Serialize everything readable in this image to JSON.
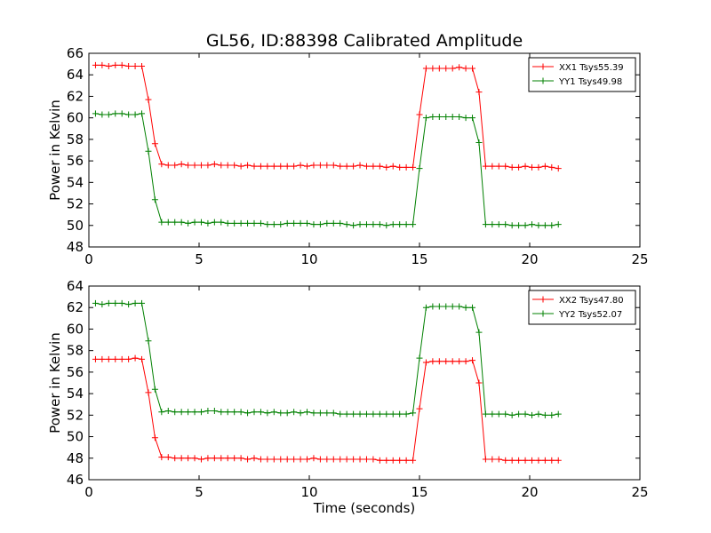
{
  "title": "GL56, ID:88398 Calibrated Amplitude",
  "chart_data": [
    {
      "type": "line",
      "xlabel": "",
      "ylabel": "Power in Kelvin",
      "xlim": [
        0,
        25
      ],
      "ylim": [
        48,
        66
      ],
      "xticks": [
        0,
        5,
        10,
        15,
        20,
        25
      ],
      "yticks": [
        48,
        50,
        52,
        54,
        56,
        58,
        60,
        62,
        64,
        66
      ],
      "legend_position": "top-right",
      "grid": false,
      "x": [
        0.3,
        0.6,
        0.9,
        1.2,
        1.5,
        1.8,
        2.1,
        2.4,
        2.7,
        3.0,
        3.3,
        3.6,
        3.9,
        4.2,
        4.5,
        4.8,
        5.1,
        5.4,
        5.7,
        6.0,
        6.3,
        6.6,
        6.9,
        7.2,
        7.5,
        7.8,
        8.1,
        8.4,
        8.7,
        9.0,
        9.3,
        9.6,
        9.9,
        10.2,
        10.5,
        10.8,
        11.1,
        11.4,
        11.7,
        12.0,
        12.3,
        12.6,
        12.9,
        13.2,
        13.5,
        13.8,
        14.1,
        14.4,
        14.7,
        15.0,
        15.3,
        15.6,
        15.9,
        16.2,
        16.5,
        16.8,
        17.1,
        17.4,
        17.7,
        18.0,
        18.3,
        18.6,
        18.9,
        19.2,
        19.5,
        19.8,
        20.1,
        20.4,
        20.7,
        21.0,
        21.3
      ],
      "series": [
        {
          "name": "XX1 Tsys55.39",
          "color": "#ff0000",
          "values": [
            64.9,
            64.9,
            64.8,
            64.9,
            64.9,
            64.8,
            64.8,
            64.8,
            61.7,
            57.6,
            55.7,
            55.6,
            55.6,
            55.7,
            55.6,
            55.6,
            55.6,
            55.6,
            55.7,
            55.6,
            55.6,
            55.6,
            55.5,
            55.6,
            55.5,
            55.5,
            55.5,
            55.5,
            55.5,
            55.5,
            55.5,
            55.6,
            55.5,
            55.6,
            55.6,
            55.6,
            55.6,
            55.5,
            55.5,
            55.5,
            55.6,
            55.5,
            55.5,
            55.5,
            55.4,
            55.5,
            55.4,
            55.4,
            55.4,
            60.3,
            64.6,
            64.6,
            64.6,
            64.6,
            64.6,
            64.7,
            64.6,
            64.6,
            62.4,
            55.5,
            55.5,
            55.5,
            55.5,
            55.4,
            55.4,
            55.5,
            55.4,
            55.4,
            55.5,
            55.4,
            55.3
          ]
        },
        {
          "name": "YY1 Tsys49.98",
          "color": "#008000",
          "values": [
            60.4,
            60.3,
            60.3,
            60.4,
            60.4,
            60.3,
            60.3,
            60.4,
            56.9,
            52.4,
            50.3,
            50.3,
            50.3,
            50.3,
            50.2,
            50.3,
            50.3,
            50.2,
            50.3,
            50.3,
            50.2,
            50.2,
            50.2,
            50.2,
            50.2,
            50.2,
            50.1,
            50.1,
            50.1,
            50.2,
            50.2,
            50.2,
            50.2,
            50.1,
            50.1,
            50.2,
            50.2,
            50.2,
            50.1,
            50.0,
            50.1,
            50.1,
            50.1,
            50.1,
            50.0,
            50.1,
            50.1,
            50.1,
            50.1,
            55.3,
            60.0,
            60.1,
            60.1,
            60.1,
            60.1,
            60.1,
            60.0,
            60.0,
            57.7,
            50.1,
            50.1,
            50.1,
            50.1,
            50.0,
            50.0,
            50.0,
            50.1,
            50.0,
            50.0,
            50.0,
            50.1
          ]
        }
      ]
    },
    {
      "type": "line",
      "xlabel": "Time (seconds)",
      "ylabel": "Power in Kelvin",
      "xlim": [
        0,
        25
      ],
      "ylim": [
        46,
        64
      ],
      "xticks": [
        0,
        5,
        10,
        15,
        20,
        25
      ],
      "yticks": [
        46,
        48,
        50,
        52,
        54,
        56,
        58,
        60,
        62,
        64
      ],
      "legend_position": "top-right",
      "grid": false,
      "x": [
        0.3,
        0.6,
        0.9,
        1.2,
        1.5,
        1.8,
        2.1,
        2.4,
        2.7,
        3.0,
        3.3,
        3.6,
        3.9,
        4.2,
        4.5,
        4.8,
        5.1,
        5.4,
        5.7,
        6.0,
        6.3,
        6.6,
        6.9,
        7.2,
        7.5,
        7.8,
        8.1,
        8.4,
        8.7,
        9.0,
        9.3,
        9.6,
        9.9,
        10.2,
        10.5,
        10.8,
        11.1,
        11.4,
        11.7,
        12.0,
        12.3,
        12.6,
        12.9,
        13.2,
        13.5,
        13.8,
        14.1,
        14.4,
        14.7,
        15.0,
        15.3,
        15.6,
        15.9,
        16.2,
        16.5,
        16.8,
        17.1,
        17.4,
        17.7,
        18.0,
        18.3,
        18.6,
        18.9,
        19.2,
        19.5,
        19.8,
        20.1,
        20.4,
        20.7,
        21.0,
        21.3
      ],
      "series": [
        {
          "name": "XX2 Tsys47.80",
          "color": "#ff0000",
          "values": [
            57.2,
            57.2,
            57.2,
            57.2,
            57.2,
            57.2,
            57.3,
            57.2,
            54.1,
            49.9,
            48.1,
            48.1,
            48.0,
            48.0,
            48.0,
            48.0,
            47.9,
            48.0,
            48.0,
            48.0,
            48.0,
            48.0,
            48.0,
            47.9,
            48.0,
            47.9,
            47.9,
            47.9,
            47.9,
            47.9,
            47.9,
            47.9,
            47.9,
            48.0,
            47.9,
            47.9,
            47.9,
            47.9,
            47.9,
            47.9,
            47.9,
            47.9,
            47.9,
            47.8,
            47.8,
            47.8,
            47.8,
            47.8,
            47.8,
            52.6,
            56.9,
            57.0,
            57.0,
            57.0,
            57.0,
            57.0,
            57.0,
            57.1,
            55.0,
            47.9,
            47.9,
            47.9,
            47.8,
            47.8,
            47.8,
            47.8,
            47.8,
            47.8,
            47.8,
            47.8,
            47.8
          ]
        },
        {
          "name": "YY2 Tsys52.07",
          "color": "#008000",
          "values": [
            62.4,
            62.3,
            62.4,
            62.4,
            62.4,
            62.3,
            62.4,
            62.4,
            58.9,
            54.4,
            52.3,
            52.4,
            52.3,
            52.3,
            52.3,
            52.3,
            52.3,
            52.4,
            52.4,
            52.3,
            52.3,
            52.3,
            52.3,
            52.2,
            52.3,
            52.3,
            52.2,
            52.3,
            52.2,
            52.2,
            52.3,
            52.2,
            52.3,
            52.2,
            52.2,
            52.2,
            52.2,
            52.1,
            52.1,
            52.1,
            52.1,
            52.1,
            52.1,
            52.1,
            52.1,
            52.1,
            52.1,
            52.1,
            52.2,
            57.3,
            62.0,
            62.1,
            62.1,
            62.1,
            62.1,
            62.1,
            62.0,
            62.0,
            59.7,
            52.1,
            52.1,
            52.1,
            52.1,
            52.0,
            52.1,
            52.1,
            52.0,
            52.1,
            52.0,
            52.0,
            52.1
          ]
        }
      ]
    }
  ]
}
